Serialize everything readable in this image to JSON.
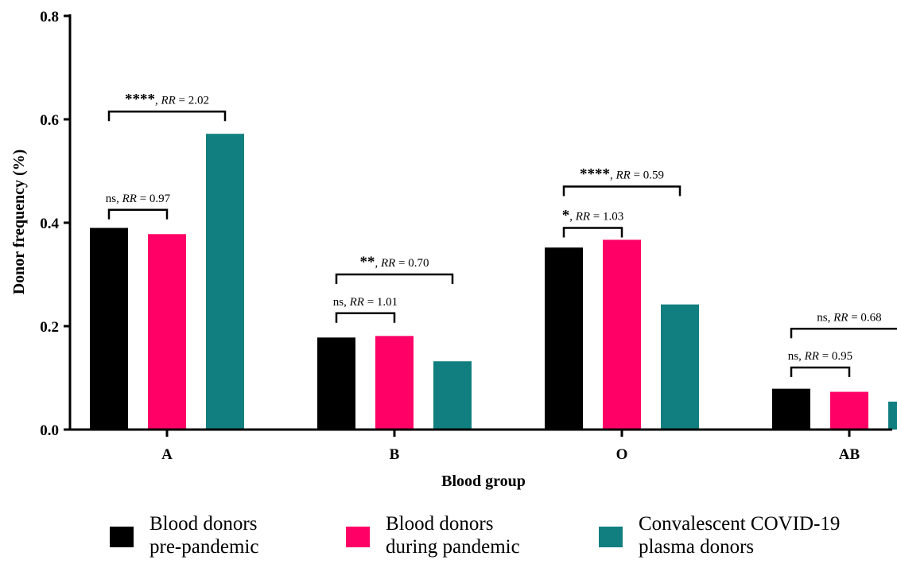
{
  "chart_data": {
    "type": "bar",
    "xlabel": "Blood group",
    "ylabel": "Donor frequency (%)",
    "ylim": [
      0,
      0.8
    ],
    "yticks": [
      "0.0",
      "0.2",
      "0.4",
      "0.6",
      "0.8"
    ],
    "categories": [
      "A",
      "B",
      "O",
      "AB"
    ],
    "series": [
      {
        "name": "Blood donors pre-pandemic",
        "name_lines": [
          "Blood donors",
          "pre-pandemic"
        ],
        "color": "#000000",
        "values": [
          0.39,
          0.178,
          0.352,
          0.079
        ]
      },
      {
        "name": "Blood donors during pandemic",
        "name_lines": [
          "Blood donors",
          "during pandemic"
        ],
        "color": "#ff0066",
        "values": [
          0.378,
          0.181,
          0.367,
          0.073
        ]
      },
      {
        "name": "Convalescent COVID-19 plasma donors",
        "name_lines": [
          "Convalescent COVID-19",
          "plasma donors"
        ],
        "color": "#117f80",
        "values": [
          0.572,
          0.132,
          0.242,
          0.054
        ]
      }
    ],
    "annotations": [
      {
        "category": "A",
        "from_series": 0,
        "to_series": 1,
        "level": 0.425,
        "sig": "ns",
        "rr_label": "RR",
        "rr_value": " = 0.97"
      },
      {
        "category": "A",
        "from_series": 0,
        "to_series": 2,
        "level": 0.615,
        "sig": "****",
        "rr_label": "RR",
        "rr_value": " = 2.02"
      },
      {
        "category": "B",
        "from_series": 0,
        "to_series": 1,
        "level": 0.225,
        "sig": "ns",
        "rr_label": "RR",
        "rr_value": " = 1.01"
      },
      {
        "category": "B",
        "from_series": 0,
        "to_series": 2,
        "level": 0.3,
        "sig": "**",
        "rr_label": "RR",
        "rr_value": " = 0.70"
      },
      {
        "category": "O",
        "from_series": 0,
        "to_series": 1,
        "level": 0.39,
        "sig": "*",
        "rr_label": "RR",
        "rr_value": " = 1.03"
      },
      {
        "category": "O",
        "from_series": 0,
        "to_series": 2,
        "level": 0.47,
        "sig": "****",
        "rr_label": "RR",
        "rr_value": " = 0.59"
      },
      {
        "category": "AB",
        "from_series": 0,
        "to_series": 1,
        "level": 0.12,
        "sig": "ns",
        "rr_label": "RR",
        "rr_value": " = 0.95"
      },
      {
        "category": "AB",
        "from_series": 0,
        "to_series": 2,
        "level": 0.195,
        "sig": "ns",
        "rr_label": "RR",
        "rr_value": " = 0.68"
      }
    ],
    "legend_position": "bottom",
    "grid": false
  }
}
